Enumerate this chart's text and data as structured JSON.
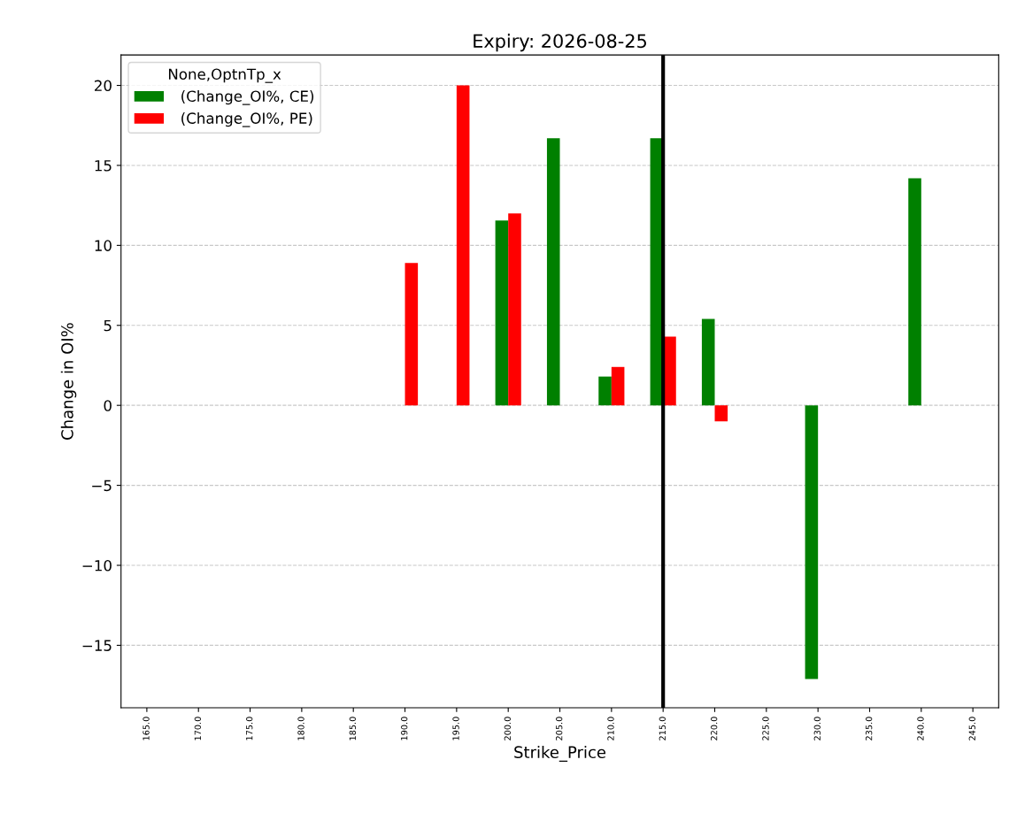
{
  "chart_data": {
    "type": "bar",
    "title": "Expiry: 2026-08-25",
    "xlabel": "Strike_Price",
    "ylabel": "Change in OI%",
    "legend_title": "None,OptnTp_x",
    "categories": [
      "165.0",
      "170.0",
      "175.0",
      "180.0",
      "185.0",
      "190.0",
      "195.0",
      "200.0",
      "205.0",
      "210.0",
      "215.0",
      "220.0",
      "225.0",
      "230.0",
      "235.0",
      "240.0",
      "245.0"
    ],
    "series": [
      {
        "name": " (Change_OI%, CE)",
        "color": "#008000",
        "values": [
          null,
          null,
          null,
          null,
          null,
          null,
          null,
          11.55,
          16.7,
          1.8,
          16.7,
          5.4,
          null,
          -17.1,
          null,
          14.2,
          null
        ]
      },
      {
        "name": " (Change_OI%, PE)",
        "color": "#ff0000",
        "values": [
          null,
          null,
          null,
          null,
          null,
          8.9,
          20.0,
          12.0,
          null,
          2.4,
          4.3,
          -1.0,
          null,
          null,
          null,
          null,
          null
        ]
      }
    ],
    "ylim": [
      -18.9,
      21.9
    ],
    "yticks": [
      -15,
      -10,
      -5,
      0,
      5,
      10,
      15,
      20
    ],
    "grid": "y",
    "legend": "top left",
    "ref_lines": [
      {
        "axis": "x",
        "value": "215.0",
        "color": "#000000",
        "line_style": "solid"
      }
    ]
  }
}
